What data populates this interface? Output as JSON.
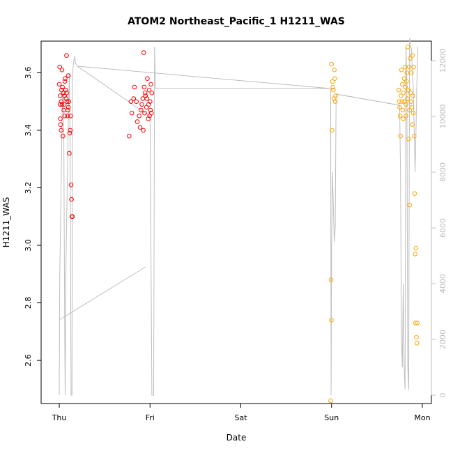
{
  "chart_data": {
    "type": "scatter",
    "title": "ATOM2 Northeast_Pacific_1 H1211_WAS",
    "xlabel": "Date",
    "ylabel": "H1211_WAS",
    "x_ticks": [
      "Thu",
      "Fri",
      "Sat",
      "Sun",
      "Mon"
    ],
    "xlim_days": [
      -0.2,
      4.1
    ],
    "ylim": [
      2.45,
      3.71
    ],
    "y_ticks": [
      2.6,
      2.8,
      3.0,
      3.2,
      3.4,
      3.6
    ],
    "y2_ticks": [
      0,
      2000,
      4000,
      6000,
      8000,
      10000,
      12000
    ],
    "y2lim": [
      -300,
      12700
    ],
    "grid": false,
    "colors": {
      "red": "#ff0000",
      "orange": "#ffa500",
      "line": "#bebebe"
    },
    "series": [
      {
        "color": "red",
        "points": [
          [
            0.0,
            3.56
          ],
          [
            0.005,
            3.62
          ],
          [
            0.01,
            3.49
          ],
          [
            0.012,
            3.44
          ],
          [
            0.015,
            3.42
          ],
          [
            0.02,
            3.4
          ],
          [
            0.022,
            3.5
          ],
          [
            0.025,
            3.54
          ],
          [
            0.03,
            3.61
          ],
          [
            0.035,
            3.55
          ],
          [
            0.04,
            3.38
          ],
          [
            0.045,
            3.53
          ],
          [
            0.05,
            3.47
          ],
          [
            0.055,
            3.49
          ],
          [
            0.06,
            3.52
          ],
          [
            0.062,
            3.57
          ],
          [
            0.065,
            3.58
          ],
          [
            0.07,
            3.54
          ],
          [
            0.075,
            3.51
          ],
          [
            0.08,
            3.66
          ],
          [
            0.085,
            3.5
          ],
          [
            0.09,
            3.45
          ],
          [
            0.095,
            3.47
          ],
          [
            0.1,
            3.59
          ],
          [
            0.105,
            3.5
          ],
          [
            0.11,
            3.32
          ],
          [
            0.115,
            3.39
          ],
          [
            0.12,
            3.4
          ],
          [
            0.125,
            3.45
          ],
          [
            0.13,
            3.21
          ],
          [
            0.135,
            3.16
          ],
          [
            0.14,
            3.1
          ],
          [
            0.145,
            3.1
          ],
          [
            0.01,
            3.52
          ],
          [
            0.03,
            3.49
          ],
          [
            0.06,
            3.45
          ],
          [
            0.08,
            3.53
          ],
          [
            0.1,
            3.48
          ],
          [
            0.77,
            3.38
          ],
          [
            0.79,
            3.5
          ],
          [
            0.8,
            3.46
          ],
          [
            0.82,
            3.51
          ],
          [
            0.83,
            3.55
          ],
          [
            0.85,
            3.5
          ],
          [
            0.86,
            3.43
          ],
          [
            0.88,
            3.45
          ],
          [
            0.89,
            3.41
          ],
          [
            0.9,
            3.47
          ],
          [
            0.92,
            3.51
          ],
          [
            0.93,
            3.67
          ],
          [
            0.935,
            3.55
          ],
          [
            0.94,
            3.46
          ],
          [
            0.95,
            3.52
          ],
          [
            0.96,
            3.48
          ],
          [
            0.97,
            3.58
          ],
          [
            0.98,
            3.44
          ],
          [
            0.99,
            3.54
          ],
          [
            1.0,
            3.5
          ],
          [
            1.005,
            3.47
          ],
          [
            1.01,
            3.56
          ],
          [
            1.015,
            3.46
          ],
          [
            1.02,
            3.53
          ],
          [
            0.91,
            3.49
          ],
          [
            0.925,
            3.4
          ],
          [
            0.945,
            3.53
          ],
          [
            0.965,
            3.51
          ],
          [
            0.985,
            3.49
          ],
          [
            0.995,
            3.45
          ]
        ]
      },
      {
        "color": "orange",
        "points": [
          [
            3.0,
            3.63
          ],
          [
            3.005,
            3.4
          ],
          [
            3.01,
            3.57
          ],
          [
            3.015,
            3.55
          ],
          [
            3.02,
            3.54
          ],
          [
            3.025,
            3.51
          ],
          [
            3.03,
            3.61
          ],
          [
            3.035,
            3.58
          ],
          [
            3.04,
            3.5
          ],
          [
            3.045,
            3.52
          ],
          [
            2.995,
            2.88
          ],
          [
            2.998,
            2.74
          ],
          [
            2.99,
            2.46
          ],
          [
            3.74,
            3.54
          ],
          [
            3.75,
            3.48
          ],
          [
            3.755,
            3.45
          ],
          [
            3.76,
            3.38
          ],
          [
            3.765,
            3.52
          ],
          [
            3.77,
            3.61
          ],
          [
            3.775,
            3.5
          ],
          [
            3.78,
            3.56
          ],
          [
            3.785,
            3.47
          ],
          [
            3.79,
            3.53
          ],
          [
            3.8,
            3.58
          ],
          [
            3.805,
            3.5
          ],
          [
            3.81,
            3.62
          ],
          [
            3.815,
            3.55
          ],
          [
            3.82,
            3.49
          ],
          [
            3.825,
            3.57
          ],
          [
            3.83,
            3.6
          ],
          [
            3.835,
            3.51
          ],
          [
            3.84,
            3.69
          ],
          [
            3.845,
            3.54
          ],
          [
            3.85,
            3.37
          ],
          [
            3.855,
            3.62
          ],
          [
            3.86,
            3.14
          ],
          [
            3.865,
            3.65
          ],
          [
            3.87,
            3.53
          ],
          [
            3.875,
            3.5
          ],
          [
            3.88,
            3.6
          ],
          [
            3.885,
            3.48
          ],
          [
            3.89,
            3.66
          ],
          [
            3.895,
            3.52
          ],
          [
            3.9,
            3.46
          ],
          [
            3.905,
            3.62
          ],
          [
            3.91,
            3.38
          ],
          [
            3.915,
            3.18
          ],
          [
            3.92,
            2.97
          ],
          [
            3.925,
            2.73
          ],
          [
            3.93,
            2.99
          ],
          [
            3.935,
            2.68
          ],
          [
            3.94,
            2.66
          ],
          [
            3.945,
            2.73
          ],
          [
            3.745,
            3.5
          ],
          [
            3.79,
            3.44
          ],
          [
            3.82,
            3.45
          ],
          [
            3.86,
            3.47
          ],
          [
            3.89,
            3.42
          ]
        ]
      }
    ],
    "line": [
      [
        0.0,
        0
      ],
      [
        0.005,
        4200
      ],
      [
        0.02,
        7500
      ],
      [
        0.03,
        10000
      ],
      [
        0.04,
        11000
      ],
      [
        0.05,
        9000
      ],
      [
        0.06,
        2000
      ],
      [
        0.065,
        0
      ],
      [
        0.075,
        5000
      ],
      [
        0.09,
        8000
      ],
      [
        0.1,
        10000
      ],
      [
        0.11,
        11500
      ],
      [
        0.12,
        9000
      ],
      [
        0.13,
        0
      ],
      [
        0.14,
        0
      ],
      [
        0.145,
        11500
      ],
      [
        0.16,
        12000
      ],
      [
        0.17,
        12150
      ],
      [
        0.18,
        11900
      ],
      [
        0.2,
        11800
      ],
      [
        1.0,
        10000
      ],
      [
        1.005,
        8000
      ],
      [
        1.02,
        0
      ],
      [
        1.04,
        0
      ],
      [
        1.05,
        12500
      ],
      [
        1.06,
        11000
      ],
      [
        2.99,
        11000
      ],
      [
        2.995,
        0
      ],
      [
        3.0,
        5000
      ],
      [
        3.01,
        8000
      ],
      [
        3.03,
        5500
      ],
      [
        3.04,
        6000
      ],
      [
        3.05,
        10800
      ],
      [
        3.75,
        10400
      ],
      [
        3.76,
        8000
      ],
      [
        3.77,
        2000
      ],
      [
        3.78,
        1000
      ],
      [
        3.79,
        4000
      ],
      [
        3.8,
        1000
      ],
      [
        3.81,
        200
      ],
      [
        3.82,
        12500
      ],
      [
        3.83,
        11000
      ],
      [
        3.84,
        1000
      ],
      [
        3.85,
        200
      ],
      [
        3.86,
        12800
      ],
      [
        3.88,
        12400
      ],
      [
        3.9,
        11000
      ],
      [
        3.92,
        8000
      ],
      [
        3.93,
        9500
      ],
      [
        3.94,
        11200
      ],
      [
        3.95,
        12500
      ]
    ],
    "line_bridges": [
      [
        [
          0.0,
          2700
        ],
        [
          0.95,
          4600
        ]
      ],
      [
        [
          0.2,
          11800
        ],
        [
          2.99,
          11000
        ]
      ],
      [
        [
          3.05,
          10800
        ],
        [
          3.75,
          10400
        ]
      ]
    ]
  }
}
